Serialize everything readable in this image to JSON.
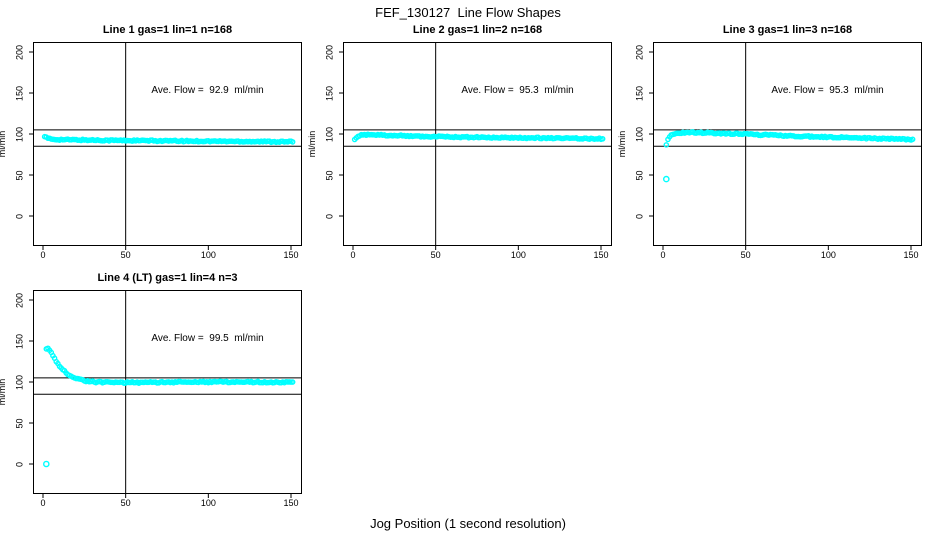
{
  "page": {
    "title": "FEF_130127  Line Flow Shapes",
    "xlabel": "Jog Position (1 second resolution)"
  },
  "chart_data": {
    "type": "scatter",
    "title": "FEF_130127  Line Flow Shapes",
    "xlabel": "Jog Position (1 second resolution)",
    "ylabel": "ml/min",
    "point_color": "#00FFFF",
    "line_color": "#000000",
    "grid": false,
    "xlim": [
      -5,
      155
    ],
    "ylim": [
      -35,
      211
    ],
    "x_ticks": [
      0,
      50,
      100,
      150
    ],
    "y_ticks": [
      0,
      50,
      100,
      150,
      200
    ],
    "ref_lines_y": [
      105,
      85
    ],
    "ref_line_x": 50,
    "plots": [
      {
        "title": "Line 1 gas=1 lin=1 n=168",
        "annotation": "Ave. Flow =  92.9  ml/min",
        "ave_flow_ml_min": 92.9,
        "n": 168,
        "x_start": 1,
        "x_end": 151,
        "control_points": [
          [
            1,
            97
          ],
          [
            3,
            94.5
          ],
          [
            6,
            93.5
          ],
          [
            15,
            93
          ],
          [
            40,
            92.3
          ],
          [
            80,
            91.5
          ],
          [
            120,
            91
          ],
          [
            151,
            90.5
          ]
        ],
        "outliers": []
      },
      {
        "title": "Line 2 gas=1 lin=2 n=168",
        "annotation": "Ave. Flow =  95.3  ml/min",
        "ave_flow_ml_min": 95.3,
        "n": 168,
        "x_start": 1,
        "x_end": 151,
        "control_points": [
          [
            1,
            92.5
          ],
          [
            2,
            95
          ],
          [
            3,
            97.5
          ],
          [
            5,
            99
          ],
          [
            10,
            99.3
          ],
          [
            20,
            98.5
          ],
          [
            40,
            97.3
          ],
          [
            70,
            96.2
          ],
          [
            110,
            95.2
          ],
          [
            151,
            94.2
          ]
        ],
        "outliers": []
      },
      {
        "title": "Line 3 gas=1 lin=3 n=168",
        "annotation": "Ave. Flow =  95.3  ml/min",
        "ave_flow_ml_min": 95.3,
        "n": 168,
        "x_start": 2,
        "x_end": 151,
        "control_points": [
          [
            2,
            87
          ],
          [
            3,
            94
          ],
          [
            5,
            99
          ],
          [
            8,
            101
          ],
          [
            15,
            102
          ],
          [
            25,
            101.5
          ],
          [
            40,
            100.5
          ],
          [
            60,
            99
          ],
          [
            80,
            97.5
          ],
          [
            100,
            96.3
          ],
          [
            125,
            94.8
          ],
          [
            151,
            93.2
          ]
        ],
        "outliers": [
          [
            2,
            45
          ]
        ]
      },
      {
        "title": "Line 4 (LT) gas=1 lin=4 n=3",
        "annotation": "Ave. Flow =  99.5  ml/min",
        "ave_flow_ml_min": 99.5,
        "n": 3,
        "x_start": 2,
        "x_end": 151,
        "control_points": [
          [
            2,
            140
          ],
          [
            3,
            141.5
          ],
          [
            4,
            139
          ],
          [
            6,
            132
          ],
          [
            8,
            125
          ],
          [
            11,
            117
          ],
          [
            14,
            111
          ],
          [
            18,
            106
          ],
          [
            22,
            103
          ],
          [
            27,
            101
          ],
          [
            33,
            99.8
          ],
          [
            45,
            99.3
          ],
          [
            70,
            99.5
          ],
          [
            100,
            100
          ],
          [
            130,
            100
          ],
          [
            151,
            99.5
          ]
        ],
        "outliers": [
          [
            2,
            0
          ]
        ]
      }
    ]
  }
}
